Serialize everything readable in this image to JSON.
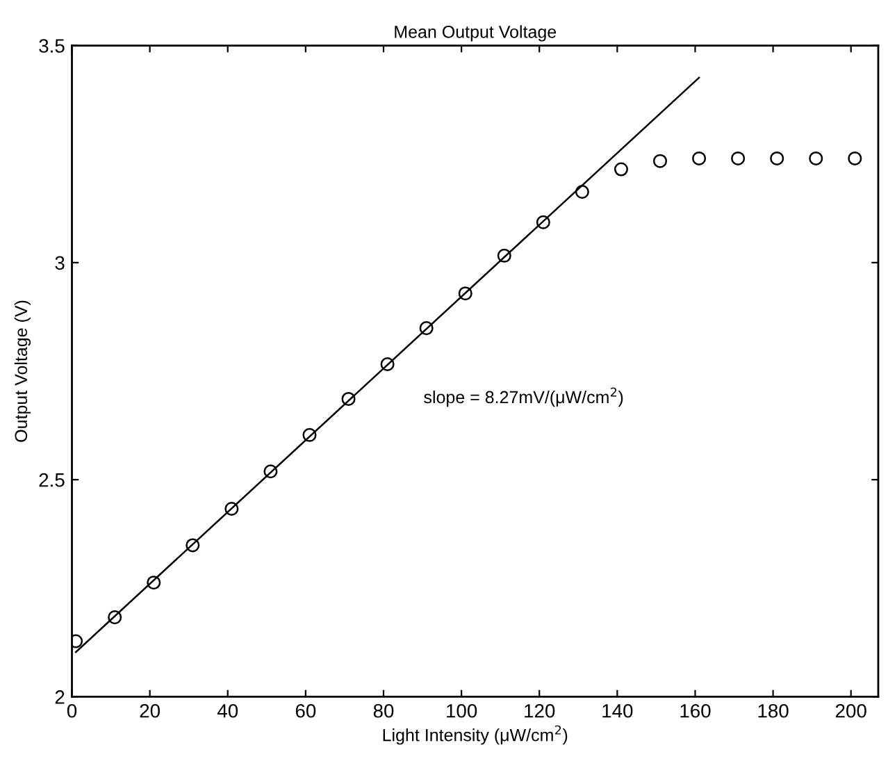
{
  "chart_data": {
    "type": "scatter",
    "title": "Mean Output Voltage",
    "xlabel": "Light Intensity (μW/cm$^{2}$)",
    "ylabel": "Output Voltage (V)",
    "x": [
      1,
      11,
      21,
      31,
      41,
      51,
      61,
      71,
      81,
      91,
      101,
      111,
      121,
      131,
      141,
      151,
      161,
      171,
      181,
      191,
      201
    ],
    "series": [
      {
        "color": "#000000",
        "marker": "circle",
        "values": [
          2.128,
          2.183,
          2.263,
          2.349,
          2.433,
          2.519,
          2.603,
          2.686,
          2.766,
          2.849,
          2.929,
          3.016,
          3.093,
          3.163,
          3.215,
          3.234,
          3.24,
          3.24,
          3.24,
          3.24,
          3.24
        ]
      },
      {
        "type": "line",
        "color": "#000000",
        "marker": "none",
        "x": [
          1,
          161
        ],
        "values": [
          2.103,
          3.426
        ]
      }
    ],
    "annotations": [
      "slope = 8.27mV/(μW/cm$^{2}$)"
    ],
    "xlim": [
      0,
      207
    ],
    "ylim": [
      2,
      3.5
    ],
    "xticks": [
      0,
      20,
      40,
      60,
      80,
      100,
      120,
      140,
      160,
      180,
      200
    ],
    "yticks": [
      2,
      {
        "value": 2.5,
        "label": "2.5"
      },
      3,
      {
        "value": 3.5,
        "label": "3.5"
      }
    ],
    "grid": false,
    "legend": false
  }
}
